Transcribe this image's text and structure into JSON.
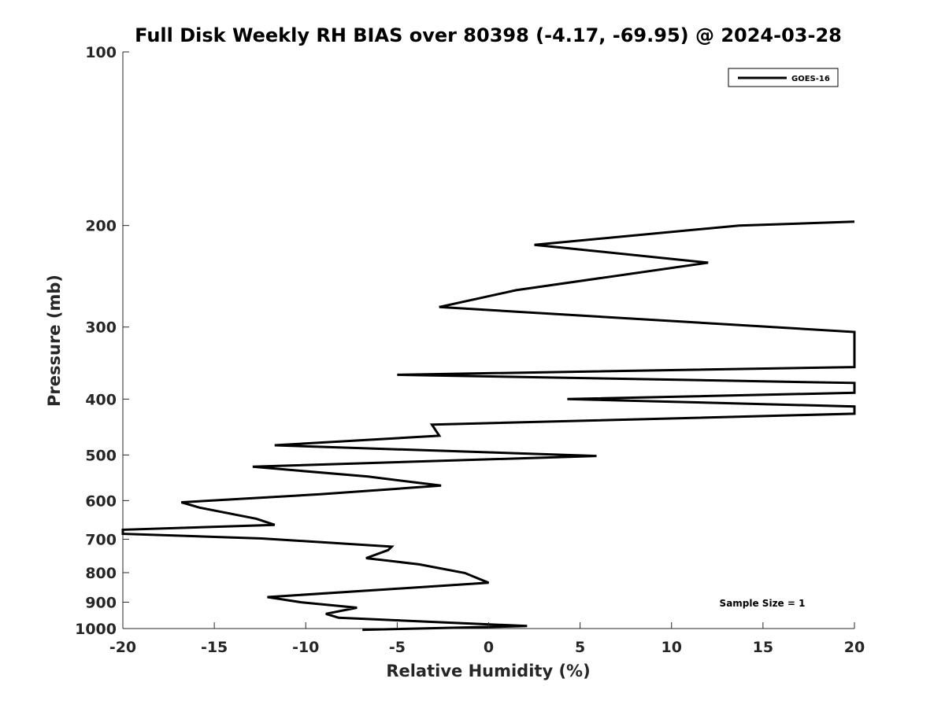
{
  "chart_data": {
    "type": "line",
    "title": "Full Disk Weekly RH BIAS over 80398 (-4.17, -69.95) @ 2024-03-28",
    "xlabel": "Relative Humidity (%)",
    "ylabel": "Pressure (mb)",
    "xlim": [
      -20,
      20
    ],
    "ylim": [
      100,
      1000
    ],
    "yscale": "log",
    "y_reversed": true,
    "grid": false,
    "x_ticks": [
      -20,
      -15,
      -10,
      -5,
      0,
      5,
      10,
      15,
      20
    ],
    "x_tick_labels": [
      "-20",
      "-15",
      "-10",
      "-5",
      "0",
      "5",
      "10",
      "15",
      "20"
    ],
    "y_ticks": [
      100,
      200,
      300,
      400,
      500,
      600,
      700,
      800,
      900,
      1000
    ],
    "y_tick_labels": [
      "100",
      "200",
      "300",
      "400",
      "500",
      "600",
      "700",
      "800",
      "900",
      "1000"
    ],
    "legend_position": "top-right",
    "annotation": "Sample Size = 1",
    "series": [
      {
        "name": "GOES-16",
        "color": "#000000",
        "x": [
          20,
          13.7,
          2.5,
          12,
          1.5,
          -2.7,
          20,
          20,
          -5,
          20,
          20,
          4.3,
          20,
          20,
          -3.1,
          -2.7,
          -11.7,
          5.9,
          -12.9,
          -6.6,
          -2.6,
          -9.2,
          -16.8,
          -15.8,
          -12.7,
          -11.7,
          -20,
          -20,
          -12.4,
          -5.3,
          -5.5,
          -6.7,
          -3.8,
          -1.3,
          0,
          -12.1,
          -10.2,
          -7.2,
          -8.9,
          -8.2,
          2.1,
          -6.9
        ],
        "y": [
          197,
          200,
          216,
          232,
          259,
          277,
          306,
          352,
          363,
          375,
          390,
          400,
          412,
          424,
          443,
          463,
          481,
          502,
          524,
          545,
          565,
          585,
          604,
          617,
          645,
          661,
          674,
          685,
          698,
          721,
          731,
          755,
          774,
          801,
          833,
          882,
          901,
          920,
          943,
          958,
          990,
          1005
        ]
      }
    ]
  }
}
